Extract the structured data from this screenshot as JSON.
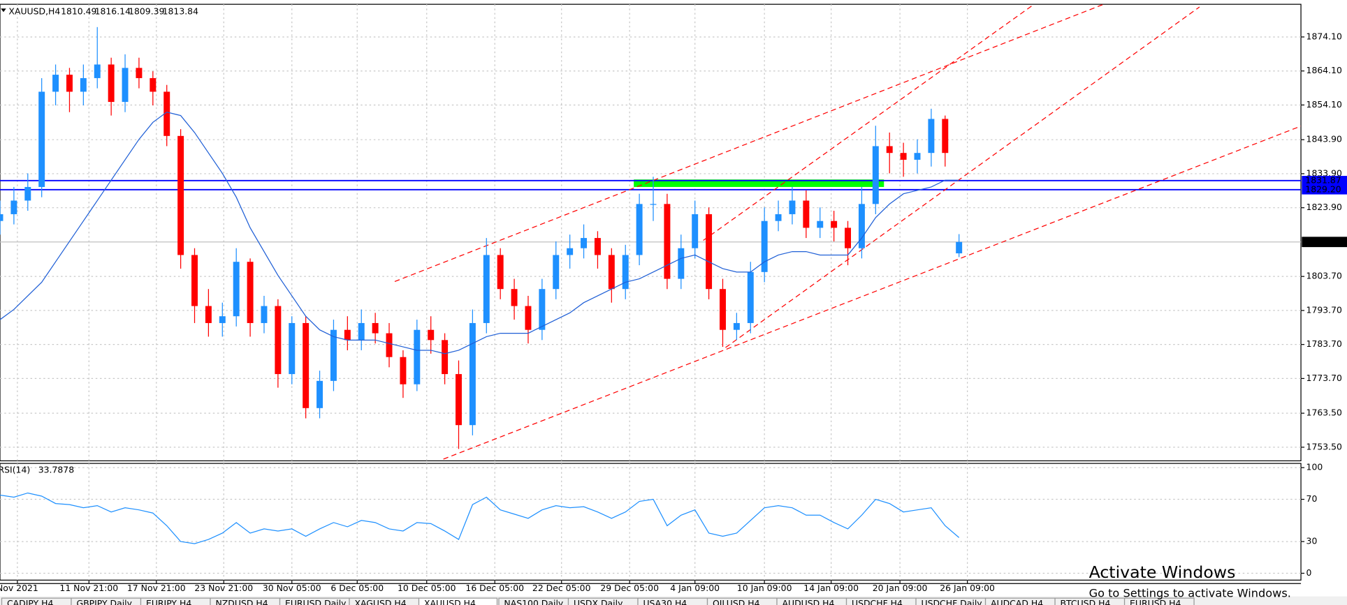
{
  "header": {
    "symbol": "XAUUSD,H4"
  },
  "chart_data": [
    {
      "type": "candlestick",
      "open": [
        1820,
        1822,
        1826,
        1830,
        1858,
        1863,
        1858,
        1862,
        1866,
        1855,
        1865,
        1862,
        1858,
        1845,
        1810,
        1795,
        1790,
        1792,
        1808,
        1790,
        1795,
        1775,
        1790,
        1765,
        1773,
        1788,
        1785,
        1790,
        1787,
        1780,
        1772,
        1788,
        1785,
        1775,
        1760,
        1790,
        1810,
        1800,
        1795,
        1788,
        1800,
        1810,
        1812,
        1815,
        1810,
        1800,
        1810,
        1825,
        1825,
        1803,
        1812,
        1822,
        1800,
        1788,
        1790,
        1805,
        1820,
        1822,
        1826,
        1818,
        1820,
        1818,
        1812,
        1825,
        1842,
        1840,
        1838,
        1840,
        1850,
        1810.49
      ],
      "high": [
        1826,
        1830,
        1834,
        1862,
        1866,
        1865,
        1866,
        1877,
        1868,
        1869,
        1868,
        1864,
        1860,
        1847,
        1812,
        1800,
        1796,
        1812,
        1809,
        1798,
        1797,
        1792,
        1792,
        1776,
        1791,
        1792,
        1794,
        1793,
        1790,
        1782,
        1791,
        1792,
        1787,
        1779,
        1794,
        1815,
        1812,
        1803,
        1798,
        1803,
        1814,
        1816,
        1819,
        1817,
        1812,
        1813,
        1828,
        1833,
        1828,
        1816,
        1826,
        1824,
        1803,
        1793,
        1808,
        1824,
        1826,
        1830,
        1829,
        1824,
        1823,
        1820,
        1830,
        1848,
        1846,
        1843,
        1844,
        1853,
        1851,
        1816.14
      ],
      "low": [
        1816,
        1819,
        1823,
        1827,
        1854,
        1852,
        1854,
        1859,
        1851,
        1852,
        1859,
        1854,
        1842,
        1806,
        1790,
        1786,
        1786,
        1789,
        1786,
        1787,
        1771,
        1772,
        1762,
        1762,
        1770,
        1782,
        1782,
        1784,
        1777,
        1768,
        1770,
        1781,
        1772,
        1753,
        1757,
        1787,
        1797,
        1791,
        1784,
        1785,
        1797,
        1806,
        1809,
        1806,
        1796,
        1797,
        1807,
        1820,
        1800,
        1800,
        1809,
        1797,
        1783,
        1785,
        1787,
        1802,
        1817,
        1819,
        1815,
        1815,
        1814,
        1807,
        1809,
        1822,
        1834,
        1833,
        1834,
        1836,
        1836,
        1809.39
      ],
      "close": [
        1822,
        1826,
        1830,
        1858,
        1863,
        1858,
        1862,
        1866,
        1855,
        1865,
        1862,
        1858,
        1845,
        1810,
        1795,
        1790,
        1792,
        1808,
        1790,
        1795,
        1775,
        1790,
        1765,
        1773,
        1788,
        1785,
        1790,
        1787,
        1780,
        1772,
        1788,
        1785,
        1775,
        1760,
        1790,
        1810,
        1800,
        1795,
        1788,
        1800,
        1810,
        1812,
        1815,
        1810,
        1800,
        1810,
        1825,
        1825,
        1803,
        1812,
        1822,
        1800,
        1788,
        1790,
        1805,
        1820,
        1822,
        1826,
        1818,
        1820,
        1818,
        1812,
        1825,
        1842,
        1840,
        1838,
        1840,
        1850,
        1840,
        1813.84
      ],
      "ma": [
        1791,
        1794,
        1798,
        1802,
        1808,
        1814,
        1820,
        1826,
        1832,
        1838,
        1844,
        1849,
        1852,
        1851,
        1846,
        1840,
        1834,
        1827,
        1818,
        1811,
        1804,
        1798,
        1792,
        1788,
        1786,
        1785,
        1785,
        1785,
        1784,
        1783,
        1782,
        1782,
        1781,
        1782,
        1784,
        1786,
        1787,
        1787,
        1787,
        1789,
        1791,
        1793,
        1796,
        1798,
        1800,
        1802,
        1803,
        1805,
        1807,
        1809,
        1810,
        1808,
        1806,
        1805,
        1805,
        1808,
        1810,
        1811,
        1811,
        1810,
        1810,
        1810,
        1815,
        1821,
        1825,
        1828,
        1829,
        1830,
        1832,
        1832
      ],
      "up_color": "#1e90ff",
      "down_color": "#ff0000",
      "ma_color": "#1f5fd6",
      "xlim": [
        0,
        93.6
      ],
      "ylim": [
        1749.5,
        1883.7
      ],
      "grid": true,
      "yticks": [
        {
          "value": 1874.1,
          "label": "1874.10"
        },
        {
          "value": 1864.1,
          "label": "1864.10"
        },
        {
          "value": 1854.1,
          "label": "1854.10"
        },
        {
          "value": 1843.9,
          "label": "1843.90"
        },
        {
          "value": 1833.9,
          "label": "1833.90"
        },
        {
          "value": 1823.9,
          "label": "1823.90"
        },
        {
          "value": 1803.7,
          "label": "1803.70"
        },
        {
          "value": 1793.7,
          "label": "1793.70"
        },
        {
          "value": 1783.7,
          "label": "1783.70"
        },
        {
          "value": 1773.7,
          "label": "1773.70"
        },
        {
          "value": 1763.5,
          "label": "1763.50"
        },
        {
          "value": 1753.5,
          "label": "1753.50"
        }
      ],
      "xticks": [
        {
          "value": 1.25,
          "label": "Nov 2021"
        },
        {
          "value": 6.4,
          "label": "11 Nov 21:00"
        },
        {
          "value": 11.25,
          "label": "17 Nov 21:00"
        },
        {
          "value": 16.1,
          "label": "23 Nov 21:00"
        },
        {
          "value": 21,
          "label": "30 Nov 05:00"
        },
        {
          "value": 25.7,
          "label": "6 Dec 05:00"
        },
        {
          "value": 30.7,
          "label": "10 Dec 05:00"
        },
        {
          "value": 35.6,
          "label": "16 Dec 05:00"
        },
        {
          "value": 40.4,
          "label": "22 Dec 05:00"
        },
        {
          "value": 45.3,
          "label": "29 Dec 05:00"
        },
        {
          "value": 50,
          "label": "4 Jan 09:00"
        },
        {
          "value": 55,
          "label": "10 Jan 09:00"
        },
        {
          "value": 59.8,
          "label": "14 Jan 09:00"
        },
        {
          "value": 64.75,
          "label": "20 Jan 09:00"
        },
        {
          "value": 69.6,
          "label": "26 Jan 09:00"
        }
      ],
      "levels": [
        {
          "value": 1831.87,
          "label": "1831.87",
          "color": "#0000ff"
        },
        {
          "value": 1829.2,
          "label": "1829.20",
          "color": "#0000ff"
        }
      ],
      "zone": {
        "x": [
          45.6,
          63.6
        ],
        "y": [
          1830.0,
          1832.2
        ],
        "color": "#00ff00"
      },
      "trendlines": [
        {
          "x": [
            31.9,
            93.6
          ],
          "y": [
            1750,
            1847.9
          ]
        },
        {
          "x": [
            28.4,
            79.4
          ],
          "y": [
            1802.2,
            1883.7
          ]
        },
        {
          "x": [
            52.2,
            86.3
          ],
          "y": [
            1782.8,
            1882.9
          ]
        },
        {
          "x": [
            50.6,
            74.4
          ],
          "y": [
            1814.3,
            1883.7
          ]
        }
      ],
      "trend_color": "#ff0000"
    },
    {
      "type": "line",
      "name": "RSI(14)",
      "color": "#1e90ff",
      "values": [
        74,
        72,
        76,
        73,
        66,
        65,
        62,
        64,
        58,
        62,
        60,
        57,
        45,
        30,
        28,
        32,
        38,
        48,
        38,
        42,
        40,
        42,
        35,
        42,
        48,
        44,
        50,
        48,
        42,
        40,
        48,
        47,
        40,
        32,
        65,
        72,
        60,
        56,
        52,
        60,
        64,
        62,
        63,
        58,
        52,
        58,
        68,
        70,
        45,
        55,
        60,
        38,
        35,
        38,
        50,
        62,
        64,
        62,
        55,
        55,
        48,
        42,
        55,
        70,
        66,
        58,
        60,
        62,
        45,
        33.7878
      ],
      "xlim": [
        0,
        93.6
      ],
      "ylim": [
        -6.5,
        104
      ],
      "yticks": [
        100,
        70,
        30,
        0
      ],
      "grid": true
    }
  ],
  "tabs": [
    "CADJPY,H4",
    "GBPJPY,Daily",
    "EURJPY,H4",
    "NZDUSD,H4",
    "EURUSD,Daily",
    "XAGUSD,H4",
    "XAUUSD,H4",
    "NAS100,Daily",
    "USDX,Daily",
    "USA30,H4",
    "OILUSD,H4",
    "AUDUSD,H4",
    "USDCHF,H4",
    "USDCHF,Daily",
    "AUDCAD,H4",
    "BTCUSD,H4",
    "EURUSD,H4"
  ],
  "watermark": {
    "title": "Activate Windows",
    "subtitle": "Go to Settings to activate Windows."
  }
}
